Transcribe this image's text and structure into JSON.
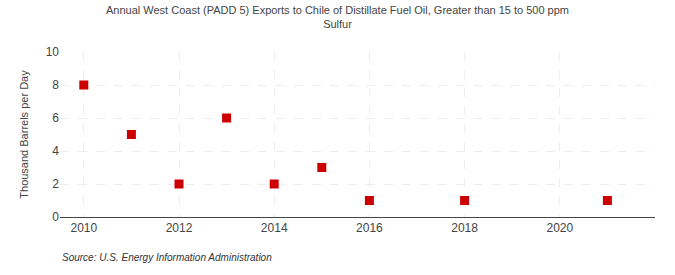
{
  "chart_data": {
    "type": "scatter",
    "title": "Annual West Coast (PADD 5) Exports to Chile of Distillate Fuel Oil, Greater than 15 to 500 ppm\nSulfur",
    "ylabel": "Thousand Barrels per Day",
    "annotations": [
      "Source: U.S. Energy Information Administration"
    ],
    "x": [
      2010,
      2011,
      2012,
      2013,
      2014,
      2015,
      2016,
      2018,
      2021
    ],
    "values": [
      8,
      5,
      2,
      6,
      2,
      3,
      1,
      1,
      1
    ],
    "xlim": [
      2009.5,
      2022
    ],
    "ylim": [
      0,
      10
    ],
    "xticks": [
      2010,
      2012,
      2014,
      2016,
      2018,
      2020
    ],
    "yticks": [
      0,
      2,
      4,
      6,
      8,
      10
    ],
    "color": "#cc0000",
    "marker": "square",
    "grid": true
  }
}
